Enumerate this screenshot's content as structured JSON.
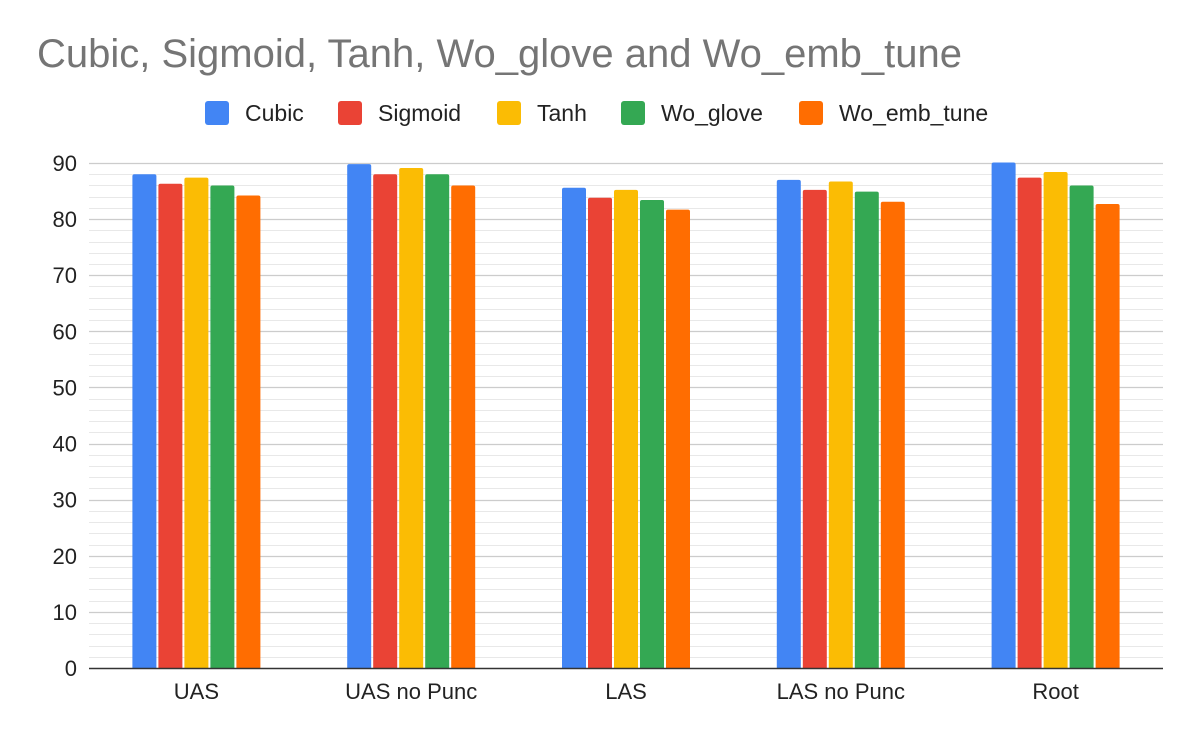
{
  "chart_data": {
    "type": "bar",
    "title": "Cubic, Sigmoid, Tanh, Wo_glove and Wo_emb_tune",
    "xlabel": "",
    "ylabel": "",
    "categories": [
      "UAS",
      "UAS no Punc",
      "LAS",
      "LAS no Punc",
      "Root"
    ],
    "series": [
      {
        "name": "Cubic",
        "color": "#4285f4",
        "values": [
          88,
          89.8,
          85.6,
          87,
          90.1
        ]
      },
      {
        "name": "Sigmoid",
        "color": "#ea4335",
        "values": [
          86.3,
          88,
          83.8,
          85.2,
          87.4
        ]
      },
      {
        "name": "Tanh",
        "color": "#fbbc04",
        "values": [
          87.4,
          89.1,
          85.2,
          86.7,
          88.4
        ]
      },
      {
        "name": "Wo_glove",
        "color": "#34a853",
        "values": [
          86,
          88,
          83.4,
          84.9,
          86
        ]
      },
      {
        "name": "Wo_emb_tune",
        "color": "#ff6d01",
        "values": [
          84.2,
          86,
          81.7,
          83.1,
          82.7
        ]
      }
    ],
    "ylim": [
      0,
      90
    ],
    "yticks": [
      "0",
      "10",
      "20",
      "30",
      "40",
      "50",
      "60",
      "70",
      "80",
      "90"
    ],
    "grid": true,
    "legend_position": "top"
  }
}
